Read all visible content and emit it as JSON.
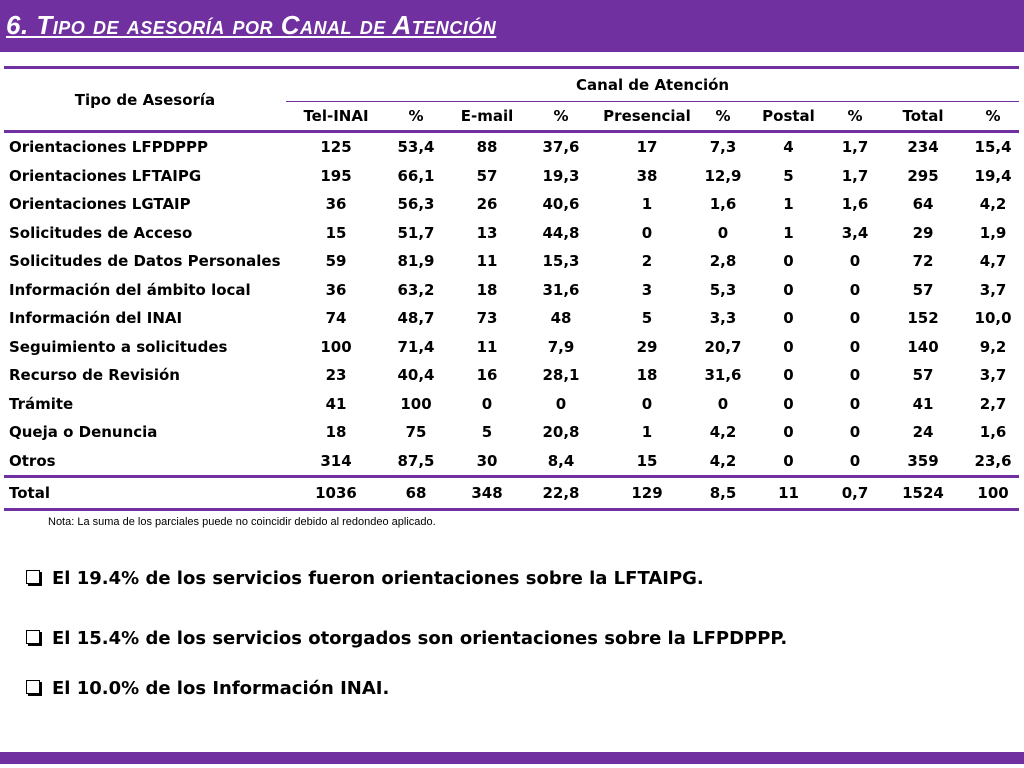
{
  "header": {
    "title": "6. Tipo de asesoría por Canal de Atención"
  },
  "table": {
    "tipo_header": "Tipo de Asesoría",
    "canal_header": "Canal de Atención",
    "columns": [
      "Tel-INAI",
      "%",
      "E-mail",
      "%",
      "Presencial",
      "%",
      "Postal",
      "%",
      "Total",
      "%"
    ],
    "rows": [
      {
        "name": "Orientaciones LFPDPPP",
        "cells": [
          "125",
          "53,4",
          "88",
          "37,6",
          "17",
          "7,3",
          "4",
          "1,7",
          "234",
          "15,4"
        ]
      },
      {
        "name": "Orientaciones LFTAIPG",
        "cells": [
          "195",
          "66,1",
          "57",
          "19,3",
          "38",
          "12,9",
          "5",
          "1,7",
          "295",
          "19,4"
        ]
      },
      {
        "name": "Orientaciones LGTAIP",
        "cells": [
          "36",
          "56,3",
          "26",
          "40,6",
          "1",
          "1,6",
          "1",
          "1,6",
          "64",
          "4,2"
        ]
      },
      {
        "name": "Solicitudes de Acceso",
        "cells": [
          "15",
          "51,7",
          "13",
          "44,8",
          "0",
          "0",
          "1",
          "3,4",
          "29",
          "1,9"
        ]
      },
      {
        "name": "Solicitudes de Datos Personales",
        "cells": [
          "59",
          "81,9",
          "11",
          "15,3",
          "2",
          "2,8",
          "0",
          "0",
          "72",
          "4,7"
        ]
      },
      {
        "name": "Información del ámbito local",
        "cells": [
          "36",
          "63,2",
          "18",
          "31,6",
          "3",
          "5,3",
          "0",
          "0",
          "57",
          "3,7"
        ]
      },
      {
        "name": "Información del INAI",
        "cells": [
          "74",
          "48,7",
          "73",
          "48",
          "5",
          "3,3",
          "0",
          "0",
          "152",
          "10,0"
        ]
      },
      {
        "name": "Seguimiento a solicitudes",
        "cells": [
          "100",
          "71,4",
          "11",
          "7,9",
          "29",
          "20,7",
          "0",
          "0",
          "140",
          "9,2"
        ]
      },
      {
        "name": "Recurso de Revisión",
        "cells": [
          "23",
          "40,4",
          "16",
          "28,1",
          "18",
          "31,6",
          "0",
          "0",
          "57",
          "3,7"
        ]
      },
      {
        "name": "Trámite",
        "cells": [
          "41",
          "100",
          "0",
          "0",
          "0",
          "0",
          "0",
          "0",
          "41",
          "2,7"
        ]
      },
      {
        "name": "Queja o Denuncia",
        "cells": [
          "18",
          "75",
          "5",
          "20,8",
          "1",
          "4,2",
          "0",
          "0",
          "24",
          "1,6"
        ]
      },
      {
        "name": "Otros",
        "cells": [
          "314",
          "87,5",
          "30",
          "8,4",
          "15",
          "4,2",
          "0",
          "0",
          "359",
          "23,6"
        ]
      }
    ],
    "total": {
      "name": "Total",
      "cells": [
        "1036",
        "68",
        "348",
        "22,8",
        "129",
        "8,5",
        "11",
        "0,7",
        "1524",
        "100"
      ]
    }
  },
  "note": "Nota: La suma de los parciales puede no coincidir debido al redondeo aplicado.",
  "bullets": [
    "El 19.4% de los servicios fueron orientaciones sobre la LFTAIPG.",
    "El 15.4% de los servicios otorgados son orientaciones sobre la LFPDPPP.",
    "El 10.0% de los Información INAI."
  ],
  "colors": {
    "accent": "#7030a0"
  }
}
